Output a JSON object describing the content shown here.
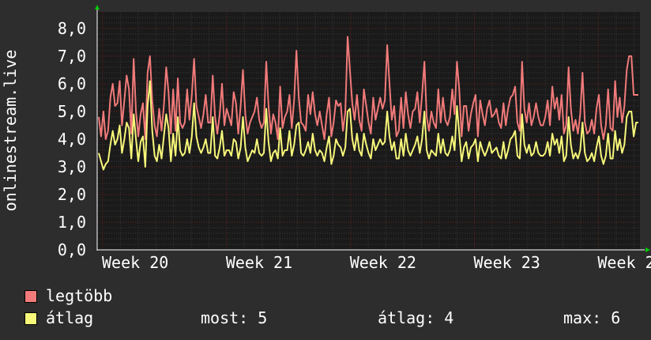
{
  "colors": {
    "background": "#2d2d2d",
    "plot_background": "#1a1a1a",
    "grid_minor": "#3a3a3a",
    "grid_major": "#6e2020",
    "axis": "#ffffff",
    "arrow": "#00cc00",
    "max_series": "#f17a7a",
    "avg_series": "#f7f77a"
  },
  "chart_data": {
    "type": "line",
    "ylabel": "onlinestream.live",
    "yticks": [
      "0,0",
      "1,0",
      "2,0",
      "3,0",
      "4,0",
      "5,0",
      "6,0",
      "7,0",
      "8,0"
    ],
    "ylim": [
      0,
      8.6
    ],
    "xticks": [
      "Week 20",
      "Week 21",
      "Week 22",
      "Week 23",
      "Week 2"
    ],
    "grid": true,
    "series": [
      {
        "name": "legtöbb",
        "color": "#f17a7a",
        "values": [
          4.8,
          4.1,
          5.0,
          4.0,
          4.3,
          5.5,
          6.0,
          5.2,
          5.3,
          6.1,
          4.5,
          5.4,
          6.3,
          5.8,
          4.2,
          6.9,
          5.0,
          4.1,
          4.9,
          5.3,
          4.0,
          6.4,
          7.0,
          5.4,
          4.5,
          4.1,
          5.1,
          4.3,
          5.2,
          6.6,
          5.7,
          4.2,
          5.8,
          4.3,
          6.2,
          4.6,
          4.4,
          4.6,
          5.8,
          4.7,
          5.6,
          6.9,
          5.2,
          4.8,
          4.4,
          4.9,
          5.6,
          4.6,
          4.6,
          6.3,
          4.8,
          4.2,
          4.9,
          6.0,
          4.5,
          5.1,
          4.8,
          4.5,
          5.7,
          5.3,
          4.2,
          5.2,
          6.5,
          4.9,
          4.2,
          4.6,
          4.8,
          5.0,
          5.5,
          4.7,
          4.4,
          4.6,
          6.8,
          5.2,
          4.2,
          4.9,
          4.6,
          4.0,
          5.9,
          4.4,
          4.8,
          5.0,
          5.6,
          4.4,
          5.4,
          7.2,
          5.5,
          4.6,
          4.5,
          4.3,
          5.6,
          4.9,
          5.7,
          4.9,
          4.5,
          5.0,
          4.5,
          4.0,
          4.9,
          5.5,
          4.1,
          4.6,
          5.4,
          5.2,
          5.3,
          4.3,
          5.0,
          7.7,
          6.5,
          5.3,
          4.7,
          5.6,
          4.7,
          4.3,
          5.8,
          5.2,
          4.6,
          4.2,
          5.5,
          4.7,
          5.1,
          5.5,
          5.1,
          5.4,
          7.4,
          6.0,
          4.7,
          5.2,
          4.1,
          4.3,
          5.5,
          4.4,
          5.7,
          4.9,
          4.4,
          5.0,
          5.1,
          5.7,
          4.6,
          5.6,
          6.8,
          4.8,
          4.3,
          5.0,
          4.6,
          4.4,
          5.8,
          4.6,
          5.5,
          4.7,
          4.5,
          4.8,
          5.8,
          4.9,
          6.8,
          5.8,
          4.1,
          5.2,
          5.2,
          4.3,
          4.9,
          5.3,
          5.6,
          4.1,
          5.4,
          4.9,
          4.5,
          5.1,
          5.4,
          4.8,
          4.9,
          5.1,
          4.6,
          4.4,
          5.3,
          4.5,
          5.1,
          5.5,
          5.6,
          5.9,
          4.6,
          4.3,
          6.8,
          5.1,
          4.6,
          5.3,
          4.5,
          4.8,
          5.3,
          4.8,
          4.5,
          4.5,
          4.8,
          5.4,
          4.5,
          5.9,
          5.1,
          5.5,
          4.7,
          5.6,
          4.2,
          4.5,
          6.6,
          5.1,
          4.3,
          4.7,
          4.2,
          4.9,
          6.4,
          4.6,
          4.2,
          4.3,
          4.7,
          4.2,
          5.1,
          5.6,
          4.5,
          4.0,
          4.5,
          5.8,
          4.4,
          4.3,
          6.1,
          4.8,
          5.5,
          4.6,
          5.2,
          6.5,
          7.0,
          7.0,
          5.6,
          5.6,
          5.6
        ]
      },
      {
        "name": "átlag",
        "color": "#f7f77a",
        "values": [
          3.5,
          3.2,
          2.9,
          3.1,
          3.2,
          3.8,
          4.3,
          3.8,
          4.0,
          4.5,
          3.5,
          4.0,
          4.6,
          4.4,
          3.3,
          4.9,
          4.0,
          3.2,
          3.9,
          4.1,
          3.0,
          5.2,
          6.1,
          4.3,
          3.4,
          3.2,
          3.8,
          3.3,
          4.1,
          4.9,
          4.4,
          3.2,
          4.2,
          3.4,
          4.8,
          3.6,
          3.4,
          3.5,
          4.0,
          3.5,
          4.1,
          5.3,
          4.1,
          3.7,
          3.5,
          3.7,
          4.0,
          3.5,
          3.5,
          4.8,
          3.4,
          3.3,
          3.7,
          4.3,
          3.4,
          3.6,
          3.6,
          3.4,
          4.0,
          3.9,
          3.3,
          3.7,
          4.8,
          3.7,
          3.2,
          3.4,
          3.6,
          3.5,
          4.0,
          3.5,
          3.4,
          3.5,
          5.1,
          3.9,
          3.2,
          3.5,
          3.6,
          3.3,
          4.4,
          3.4,
          3.6,
          3.6,
          4.3,
          3.4,
          3.8,
          4.5,
          4.6,
          3.5,
          3.4,
          3.6,
          3.9,
          3.5,
          4.2,
          3.6,
          3.4,
          3.6,
          3.5,
          3.2,
          3.7,
          4.1,
          3.1,
          3.4,
          4.0,
          3.8,
          3.7,
          3.4,
          3.7,
          5.0,
          5.1,
          4.0,
          3.6,
          4.2,
          3.6,
          3.4,
          4.2,
          3.8,
          3.5,
          3.3,
          4.0,
          3.6,
          3.8,
          4.0,
          3.8,
          3.9,
          5.0,
          4.1,
          3.6,
          3.9,
          3.3,
          3.3,
          4.0,
          3.4,
          4.2,
          3.6,
          3.4,
          3.6,
          3.8,
          4.1,
          3.5,
          4.0,
          5.0,
          3.6,
          3.3,
          3.6,
          3.5,
          3.4,
          4.2,
          3.5,
          4.0,
          3.5,
          3.4,
          3.6,
          4.1,
          3.6,
          5.2,
          4.2,
          3.2,
          3.7,
          3.9,
          3.3,
          3.7,
          3.8,
          4.0,
          3.2,
          3.9,
          3.6,
          3.4,
          3.6,
          3.9,
          3.5,
          3.6,
          3.7,
          3.4,
          3.3,
          3.9,
          3.3,
          3.6,
          4.0,
          4.1,
          4.3,
          3.4,
          3.3,
          4.9,
          3.8,
          3.5,
          3.8,
          3.4,
          3.5,
          3.9,
          3.5,
          3.4,
          3.4,
          3.5,
          3.9,
          3.4,
          4.2,
          3.8,
          4.0,
          3.5,
          4.1,
          3.2,
          3.4,
          4.8,
          3.8,
          3.3,
          3.5,
          3.3,
          3.6,
          4.6,
          3.5,
          3.2,
          3.3,
          3.5,
          3.2,
          3.7,
          4.1,
          3.4,
          3.1,
          3.4,
          4.2,
          3.3,
          3.3,
          4.3,
          3.6,
          4.0,
          3.5,
          3.8,
          4.8,
          5.0,
          5.0,
          4.1,
          4.6,
          4.6
        ]
      }
    ]
  },
  "legend": [
    {
      "label": "legtöbb",
      "color": "#f17a7a"
    },
    {
      "label": "átlag",
      "color": "#f7f77a"
    }
  ],
  "stats": {
    "current": "most: 5",
    "average": "átlag: 4",
    "maximum": "max: 6"
  }
}
